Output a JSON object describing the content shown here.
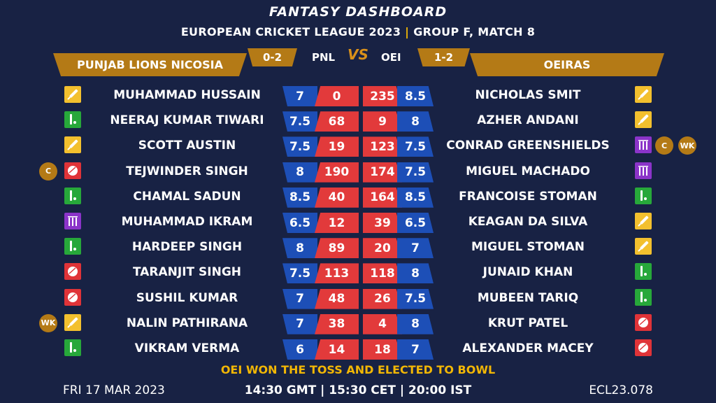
{
  "header": {
    "title": "FANTASY DASHBOARD",
    "subtitle_left": "EUROPEAN CRICKET LEAGUE 2023",
    "subtitle_sep": "|",
    "subtitle_right": "GROUP F, MATCH 8"
  },
  "teams": {
    "left": {
      "name": "PUNJAB LIONS NICOSIA",
      "abbr": "PNL",
      "record": "0-2"
    },
    "right": {
      "name": "OEIRAS",
      "abbr": "OEI",
      "record": "1-2"
    },
    "vs": "VS"
  },
  "colors": {
    "background": "#182244",
    "gold": "#b47a16",
    "credit_blue": "#1d4fb7",
    "points_red": "#e23a3b",
    "toss_yellow": "#f2b705",
    "role_batter": "#f3c02e",
    "role_wicketkeeper": "#27a83a",
    "role_bowler": "#e03338",
    "role_allrounder": "#8b34c9"
  },
  "rows": [
    {
      "left": {
        "name": "MUHAMMAD HUSSAIN",
        "role": "bat-icon",
        "credits": "7",
        "points": "0"
      },
      "right": {
        "name": "NICHOLAS SMIT",
        "role": "bat-icon",
        "credits": "8.5",
        "points": "235"
      }
    },
    {
      "left": {
        "name": "NEERAJ KUMAR TIWARI",
        "role": "batsman-pads-icon",
        "credits": "7.5",
        "points": "68"
      },
      "right": {
        "name": "AZHER ANDANI",
        "role": "bat-icon",
        "credits": "8",
        "points": "9"
      }
    },
    {
      "left": {
        "name": "SCOTT AUSTIN",
        "role": "bat-icon",
        "credits": "7.5",
        "points": "19"
      },
      "right": {
        "name": "CONRAD GREENSHIELDS",
        "role": "stumps-icon",
        "credits": "7.5",
        "points": "123",
        "badges": [
          "C",
          "WK"
        ]
      }
    },
    {
      "left": {
        "name": "TEJWINDER SINGH",
        "role": "ball-icon",
        "credits": "8",
        "points": "190",
        "badges": [
          "C"
        ]
      },
      "right": {
        "name": "MIGUEL MACHADO",
        "role": "stumps-icon",
        "credits": "7.5",
        "points": "174"
      }
    },
    {
      "left": {
        "name": "CHAMAL SADUN",
        "role": "batsman-pads-icon",
        "credits": "8.5",
        "points": "40"
      },
      "right": {
        "name": "FRANCOISE STOMAN",
        "role": "batsman-pads-icon",
        "credits": "8.5",
        "points": "164"
      }
    },
    {
      "left": {
        "name": "MUHAMMAD IKRAM",
        "role": "stumps-icon",
        "credits": "6.5",
        "points": "12"
      },
      "right": {
        "name": "KEAGAN DA SILVA",
        "role": "bat-icon",
        "credits": "6.5",
        "points": "39"
      }
    },
    {
      "left": {
        "name": "HARDEEP SINGH",
        "role": "batsman-pads-icon",
        "credits": "8",
        "points": "89"
      },
      "right": {
        "name": "MIGUEL STOMAN",
        "role": "bat-icon",
        "credits": "7",
        "points": "20"
      }
    },
    {
      "left": {
        "name": "TARANJIT SINGH",
        "role": "ball-icon",
        "credits": "7.5",
        "points": "113"
      },
      "right": {
        "name": "JUNAID KHAN",
        "role": "batsman-pads-icon",
        "credits": "8",
        "points": "118"
      }
    },
    {
      "left": {
        "name": "SUSHIL KUMAR",
        "role": "ball-icon",
        "credits": "7",
        "points": "48"
      },
      "right": {
        "name": "MUBEEN TARIQ",
        "role": "batsman-pads-icon",
        "credits": "7.5",
        "points": "26"
      }
    },
    {
      "left": {
        "name": "NALIN PATHIRANA",
        "role": "bat-icon",
        "credits": "7",
        "points": "38",
        "badges": [
          "WK"
        ]
      },
      "right": {
        "name": "KRUT PATEL",
        "role": "ball-icon",
        "credits": "8",
        "points": "4"
      }
    },
    {
      "left": {
        "name": "VIKRAM VERMA",
        "role": "batsman-pads-icon",
        "credits": "6",
        "points": "14"
      },
      "right": {
        "name": "ALEXANDER MACEY",
        "role": "ball-icon",
        "credits": "7",
        "points": "18"
      }
    }
  ],
  "toss": "OEI WON THE TOSS AND ELECTED TO BOWL",
  "footer": {
    "date": "FRI 17 MAR 2023",
    "times": "14:30 GMT | 15:30 CET | 20:00 IST",
    "code": "ECL23.078"
  }
}
